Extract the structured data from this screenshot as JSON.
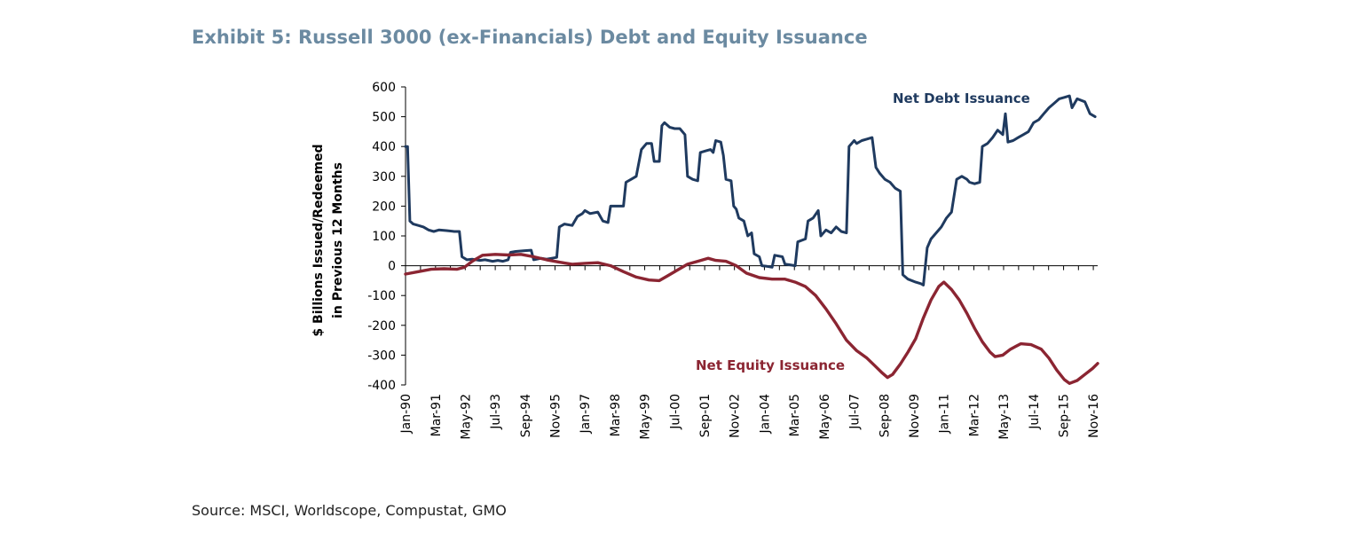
{
  "header": {
    "title": "Exhibit 5: Russell 3000 (ex-Financials) Debt and Equity Issuance"
  },
  "footer": {
    "source": "Source: MSCI, Worldscope, Compustat, GMO"
  },
  "colors": {
    "debt": "#1f3a5f",
    "equity": "#8b2532",
    "title": "#6b8aa1"
  },
  "chart_data": {
    "type": "line",
    "ylabel_lines": [
      "$ Billions Issued/Redeemed",
      "in Previous 12 Months"
    ],
    "ylim": [
      -400,
      600
    ],
    "yticks": [
      600,
      500,
      400,
      300,
      200,
      100,
      0,
      -100,
      -200,
      -300,
      -400
    ],
    "xlim": [
      1990.0,
      2017.0
    ],
    "x_ticks": [
      {
        "label": "Jan-90",
        "x": 1990.0
      },
      {
        "label": "Mar-91",
        "x": 1991.17
      },
      {
        "label": "May-92",
        "x": 1992.33
      },
      {
        "label": "Jul-93",
        "x": 1993.5
      },
      {
        "label": "Sep-94",
        "x": 1994.67
      },
      {
        "label": "Nov-95",
        "x": 1995.83
      },
      {
        "label": "Jan-97",
        "x": 1997.0
      },
      {
        "label": "Mar-98",
        "x": 1998.17
      },
      {
        "label": "May-99",
        "x": 1999.33
      },
      {
        "label": "Jul-00",
        "x": 2000.5
      },
      {
        "label": "Sep-01",
        "x": 2001.67
      },
      {
        "label": "Nov-02",
        "x": 2002.83
      },
      {
        "label": "Jan-04",
        "x": 2004.0
      },
      {
        "label": "Mar-05",
        "x": 2005.17
      },
      {
        "label": "May-06",
        "x": 2006.33
      },
      {
        "label": "Jul-07",
        "x": 2007.5
      },
      {
        "label": "Sep-08",
        "x": 2008.67
      },
      {
        "label": "Nov-09",
        "x": 2009.83
      },
      {
        "label": "Jan-11",
        "x": 2011.0
      },
      {
        "label": "Mar-12",
        "x": 2012.17
      },
      {
        "label": "May-13",
        "x": 2013.33
      },
      {
        "label": "Jul-14",
        "x": 2014.5
      },
      {
        "label": "Sep-15",
        "x": 2015.67
      },
      {
        "label": "Nov-16",
        "x": 2016.83
      }
    ],
    "series": [
      {
        "name": "Net Debt Issuance",
        "color": "#1f3a5f",
        "points": [
          [
            1990.0,
            400
          ],
          [
            1990.08,
            400
          ],
          [
            1990.17,
            150
          ],
          [
            1990.3,
            140
          ],
          [
            1990.5,
            135
          ],
          [
            1990.7,
            130
          ],
          [
            1990.9,
            120
          ],
          [
            1991.1,
            115
          ],
          [
            1991.3,
            120
          ],
          [
            1991.6,
            118
          ],
          [
            1991.9,
            115
          ],
          [
            1992.1,
            115
          ],
          [
            1992.2,
            30
          ],
          [
            1992.4,
            20
          ],
          [
            1992.6,
            22
          ],
          [
            1992.9,
            18
          ],
          [
            1993.1,
            20
          ],
          [
            1993.4,
            15
          ],
          [
            1993.6,
            18
          ],
          [
            1993.8,
            15
          ],
          [
            1994.0,
            20
          ],
          [
            1994.1,
            45
          ],
          [
            1994.3,
            48
          ],
          [
            1994.6,
            50
          ],
          [
            1994.9,
            52
          ],
          [
            1995.0,
            20
          ],
          [
            1995.3,
            25
          ],
          [
            1995.5,
            22
          ],
          [
            1995.7,
            25
          ],
          [
            1995.9,
            28
          ],
          [
            1996.0,
            130
          ],
          [
            1996.2,
            140
          ],
          [
            1996.5,
            135
          ],
          [
            1996.7,
            165
          ],
          [
            1996.9,
            175
          ],
          [
            1997.0,
            185
          ],
          [
            1997.2,
            175
          ],
          [
            1997.5,
            180
          ],
          [
            1997.7,
            150
          ],
          [
            1997.9,
            145
          ],
          [
            1998.0,
            200
          ],
          [
            1998.3,
            200
          ],
          [
            1998.5,
            200
          ],
          [
            1998.6,
            280
          ],
          [
            1998.8,
            290
          ],
          [
            1999.0,
            300
          ],
          [
            1999.2,
            390
          ],
          [
            1999.4,
            410
          ],
          [
            1999.6,
            410
          ],
          [
            1999.7,
            350
          ],
          [
            1999.9,
            350
          ],
          [
            2000.0,
            470
          ],
          [
            2000.1,
            480
          ],
          [
            2000.3,
            465
          ],
          [
            2000.5,
            460
          ],
          [
            2000.7,
            460
          ],
          [
            2000.9,
            440
          ],
          [
            2001.0,
            300
          ],
          [
            2001.2,
            290
          ],
          [
            2001.4,
            285
          ],
          [
            2001.5,
            380
          ],
          [
            2001.7,
            385
          ],
          [
            2001.9,
            390
          ],
          [
            2002.0,
            380
          ],
          [
            2002.1,
            420
          ],
          [
            2002.3,
            415
          ],
          [
            2002.4,
            370
          ],
          [
            2002.5,
            290
          ],
          [
            2002.7,
            285
          ],
          [
            2002.8,
            200
          ],
          [
            2002.9,
            190
          ],
          [
            2003.0,
            160
          ],
          [
            2003.2,
            150
          ],
          [
            2003.35,
            100
          ],
          [
            2003.5,
            110
          ],
          [
            2003.6,
            40
          ],
          [
            2003.8,
            30
          ],
          [
            2003.9,
            0
          ],
          [
            2004.1,
            -2
          ],
          [
            2004.3,
            -5
          ],
          [
            2004.4,
            35
          ],
          [
            2004.7,
            30
          ],
          [
            2004.8,
            5
          ],
          [
            2005.0,
            3
          ],
          [
            2005.2,
            0
          ],
          [
            2005.3,
            80
          ],
          [
            2005.6,
            90
          ],
          [
            2005.7,
            150
          ],
          [
            2005.9,
            160
          ],
          [
            2006.1,
            185
          ],
          [
            2006.2,
            100
          ],
          [
            2006.4,
            120
          ],
          [
            2006.6,
            110
          ],
          [
            2006.8,
            130
          ],
          [
            2007.0,
            115
          ],
          [
            2007.2,
            110
          ],
          [
            2007.3,
            400
          ],
          [
            2007.5,
            420
          ],
          [
            2007.6,
            410
          ],
          [
            2007.8,
            420
          ],
          [
            2008.0,
            425
          ],
          [
            2008.2,
            430
          ],
          [
            2008.35,
            330
          ],
          [
            2008.5,
            310
          ],
          [
            2008.7,
            290
          ],
          [
            2008.9,
            280
          ],
          [
            2009.1,
            260
          ],
          [
            2009.3,
            250
          ],
          [
            2009.4,
            -30
          ],
          [
            2009.6,
            -45
          ],
          [
            2009.9,
            -55
          ],
          [
            2010.1,
            -60
          ],
          [
            2010.2,
            -65
          ],
          [
            2010.35,
            60
          ],
          [
            2010.5,
            90
          ],
          [
            2010.7,
            110
          ],
          [
            2010.9,
            130
          ],
          [
            2011.1,
            160
          ],
          [
            2011.3,
            180
          ],
          [
            2011.5,
            290
          ],
          [
            2011.7,
            300
          ],
          [
            2011.9,
            290
          ],
          [
            2012.0,
            280
          ],
          [
            2012.2,
            275
          ],
          [
            2012.4,
            280
          ],
          [
            2012.5,
            400
          ],
          [
            2012.7,
            410
          ],
          [
            2012.9,
            430
          ],
          [
            2013.1,
            455
          ],
          [
            2013.3,
            440
          ],
          [
            2013.4,
            510
          ],
          [
            2013.5,
            415
          ],
          [
            2013.7,
            420
          ],
          [
            2013.9,
            430
          ],
          [
            2014.1,
            440
          ],
          [
            2014.3,
            450
          ],
          [
            2014.5,
            480
          ],
          [
            2014.7,
            490
          ],
          [
            2014.9,
            510
          ],
          [
            2015.1,
            530
          ],
          [
            2015.3,
            545
          ],
          [
            2015.5,
            560
          ],
          [
            2015.7,
            565
          ],
          [
            2015.9,
            570
          ],
          [
            2016.0,
            530
          ],
          [
            2016.2,
            560
          ],
          [
            2016.5,
            550
          ],
          [
            2016.7,
            510
          ],
          [
            2016.9,
            500
          ]
        ]
      },
      {
        "name": "Net Equity Issuance",
        "color": "#8b2532",
        "points": [
          [
            1990.0,
            -28
          ],
          [
            1990.5,
            -20
          ],
          [
            1991.0,
            -12
          ],
          [
            1991.5,
            -10
          ],
          [
            1992.0,
            -12
          ],
          [
            1992.3,
            -5
          ],
          [
            1992.6,
            15
          ],
          [
            1993.0,
            35
          ],
          [
            1993.5,
            38
          ],
          [
            1994.0,
            36
          ],
          [
            1994.5,
            38
          ],
          [
            1995.0,
            30
          ],
          [
            1995.5,
            20
          ],
          [
            1996.0,
            12
          ],
          [
            1996.5,
            5
          ],
          [
            1997.0,
            8
          ],
          [
            1997.5,
            10
          ],
          [
            1998.0,
            0
          ],
          [
            1998.5,
            -20
          ],
          [
            1999.0,
            -38
          ],
          [
            1999.5,
            -48
          ],
          [
            1999.9,
            -50
          ],
          [
            2000.2,
            -35
          ],
          [
            2000.6,
            -15
          ],
          [
            2001.0,
            5
          ],
          [
            2001.4,
            15
          ],
          [
            2001.8,
            25
          ],
          [
            2002.1,
            18
          ],
          [
            2002.5,
            15
          ],
          [
            2002.9,
            0
          ],
          [
            2003.3,
            -25
          ],
          [
            2003.8,
            -40
          ],
          [
            2004.3,
            -45
          ],
          [
            2004.8,
            -45
          ],
          [
            2005.2,
            -55
          ],
          [
            2005.6,
            -70
          ],
          [
            2006.0,
            -100
          ],
          [
            2006.4,
            -145
          ],
          [
            2006.8,
            -195
          ],
          [
            2007.2,
            -250
          ],
          [
            2007.6,
            -285
          ],
          [
            2008.0,
            -310
          ],
          [
            2008.3,
            -335
          ],
          [
            2008.6,
            -360
          ],
          [
            2008.8,
            -375
          ],
          [
            2009.0,
            -365
          ],
          [
            2009.3,
            -330
          ],
          [
            2009.6,
            -290
          ],
          [
            2009.9,
            -245
          ],
          [
            2010.2,
            -175
          ],
          [
            2010.5,
            -115
          ],
          [
            2010.8,
            -70
          ],
          [
            2011.0,
            -55
          ],
          [
            2011.3,
            -80
          ],
          [
            2011.6,
            -115
          ],
          [
            2011.9,
            -160
          ],
          [
            2012.2,
            -210
          ],
          [
            2012.5,
            -255
          ],
          [
            2012.8,
            -290
          ],
          [
            2013.0,
            -305
          ],
          [
            2013.3,
            -300
          ],
          [
            2013.6,
            -280
          ],
          [
            2014.0,
            -262
          ],
          [
            2014.4,
            -265
          ],
          [
            2014.8,
            -280
          ],
          [
            2015.1,
            -310
          ],
          [
            2015.4,
            -350
          ],
          [
            2015.7,
            -382
          ],
          [
            2015.9,
            -395
          ],
          [
            2016.2,
            -385
          ],
          [
            2016.5,
            -365
          ],
          [
            2016.8,
            -345
          ],
          [
            2017.0,
            -328
          ]
        ]
      }
    ]
  }
}
